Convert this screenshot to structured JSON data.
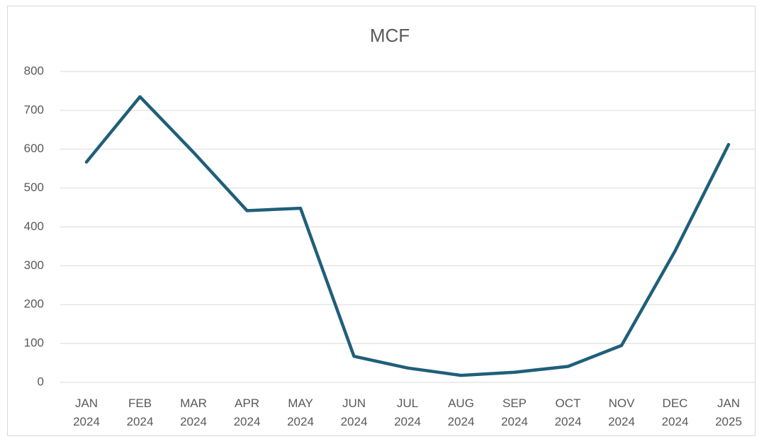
{
  "chart_data": {
    "type": "line",
    "title": "MCF",
    "categories": [
      "JAN 2024",
      "FEB 2024",
      "MAR 2024",
      "APR 2024",
      "MAY 2024",
      "JUN 2024",
      "JUL 2024",
      "AUG 2024",
      "SEP 2024",
      "OCT 2024",
      "NOV 2024",
      "DEC 2024",
      "JAN 2025"
    ],
    "values": [
      567,
      735,
      592,
      442,
      448,
      67,
      37,
      18,
      26,
      41,
      95,
      338,
      612
    ],
    "color": "#1f5f7a",
    "ylim": [
      0,
      800
    ],
    "yticks": [
      0,
      100,
      200,
      300,
      400,
      500,
      600,
      700,
      800
    ],
    "grid": true
  }
}
